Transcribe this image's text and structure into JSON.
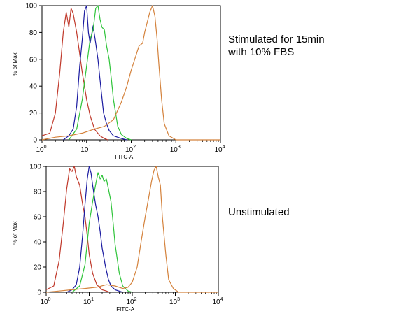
{
  "colors": {
    "red": "#c0392b",
    "blue": "#1a1aa0",
    "green": "#2fc43a",
    "orange": "#d4823c"
  },
  "chart_data": [
    {
      "type": "line",
      "annotation": "Stimulated for 15min\nwith 10% FBS",
      "xlabel": "FITC-A",
      "ylabel": "% of Max",
      "xscale": "log",
      "xlim": [
        1,
        10000
      ],
      "ylim": [
        0,
        100
      ],
      "xticks": [
        1,
        10,
        100,
        1000,
        10000
      ],
      "xtick_base": "10",
      "xtick_exponents": [
        "0",
        "1",
        "2",
        "3",
        "4"
      ],
      "yticks": [
        0,
        20,
        40,
        60,
        80,
        100
      ],
      "ytick_labels": [
        "0",
        "20",
        "40",
        "60",
        "80",
        "100"
      ],
      "grid": false,
      "series": [
        {
          "color": "red",
          "x": [
            1,
            1.5,
            2,
            2.5,
            3,
            3.5,
            4,
            4.5,
            5,
            6,
            7,
            8,
            9,
            10,
            12,
            15,
            20,
            25,
            30
          ],
          "y": [
            3,
            5,
            20,
            50,
            80,
            95,
            84,
            98,
            94,
            80,
            64,
            50,
            40,
            30,
            18,
            8,
            3,
            1,
            0
          ]
        },
        {
          "color": "blue",
          "x": [
            3,
            4,
            5,
            6,
            7,
            8,
            9,
            10,
            11,
            12,
            14,
            16,
            18,
            20,
            24,
            28,
            32,
            40,
            60,
            80
          ],
          "y": [
            0,
            3,
            8,
            25,
            55,
            75,
            96,
            100,
            80,
            72,
            85,
            72,
            60,
            45,
            20,
            12,
            7,
            3,
            1,
            0
          ]
        },
        {
          "color": "green",
          "x": [
            4,
            6,
            8,
            10,
            12,
            14,
            16,
            18,
            20,
            22,
            25,
            28,
            32,
            36,
            40,
            50,
            60,
            80,
            100
          ],
          "y": [
            0,
            8,
            30,
            55,
            75,
            82,
            98,
            100,
            90,
            84,
            82,
            70,
            60,
            45,
            30,
            10,
            4,
            1,
            0
          ]
        },
        {
          "color": "orange",
          "x": [
            1,
            2,
            4,
            8,
            15,
            25,
            40,
            60,
            80,
            100,
            120,
            150,
            180,
            200,
            230,
            260,
            300,
            340,
            380,
            420,
            480,
            550,
            700,
            1000,
            10000
          ],
          "y": [
            0,
            2,
            3,
            5,
            8,
            10,
            15,
            28,
            40,
            52,
            60,
            70,
            72,
            80,
            88,
            95,
            100,
            92,
            75,
            55,
            30,
            12,
            3,
            0,
            0
          ]
        }
      ]
    },
    {
      "type": "line",
      "annotation": "Unstimulated",
      "xlabel": "FITC-A",
      "ylabel": "% of Max",
      "xscale": "log",
      "xlim": [
        1,
        10000
      ],
      "ylim": [
        0,
        100
      ],
      "xticks": [
        1,
        10,
        100,
        1000,
        10000
      ],
      "xtick_base": "10",
      "xtick_exponents": [
        "0",
        "1",
        "2",
        "3",
        "4"
      ],
      "yticks": [
        0,
        20,
        40,
        60,
        80,
        100
      ],
      "ytick_labels": [
        "0",
        "20",
        "40",
        "60",
        "80",
        "100"
      ],
      "grid": false,
      "series": [
        {
          "color": "red",
          "x": [
            1,
            1.5,
            2,
            2.5,
            3,
            3.5,
            4,
            4.5,
            5,
            6,
            7,
            8,
            9,
            10,
            12,
            15,
            20,
            25,
            30
          ],
          "y": [
            2,
            5,
            25,
            55,
            82,
            98,
            96,
            100,
            92,
            85,
            70,
            60,
            45,
            30,
            15,
            6,
            2,
            1,
            0
          ]
        },
        {
          "color": "blue",
          "x": [
            3,
            4,
            5,
            6,
            7,
            8,
            9,
            10,
            11,
            12,
            14,
            16,
            18,
            20,
            24,
            28,
            32,
            40,
            60
          ],
          "y": [
            0,
            2,
            6,
            20,
            45,
            70,
            90,
            100,
            95,
            85,
            70,
            60,
            48,
            35,
            20,
            10,
            5,
            2,
            0
          ]
        },
        {
          "color": "green",
          "x": [
            4,
            6,
            8,
            10,
            12,
            14,
            16,
            18,
            20,
            22,
            25,
            28,
            32,
            36,
            40,
            50,
            60,
            80,
            100
          ],
          "y": [
            0,
            5,
            22,
            55,
            72,
            85,
            95,
            90,
            93,
            88,
            90,
            82,
            72,
            55,
            38,
            15,
            5,
            1,
            0
          ]
        },
        {
          "color": "orange",
          "x": [
            1,
            2,
            4,
            8,
            15,
            25,
            40,
            60,
            80,
            100,
            130,
            160,
            200,
            240,
            280,
            320,
            360,
            400,
            450,
            500,
            600,
            700,
            900,
            1200,
            10000
          ],
          "y": [
            0,
            1,
            2,
            3,
            4,
            6,
            5,
            3,
            4,
            8,
            20,
            40,
            60,
            75,
            88,
            97,
            100,
            92,
            85,
            60,
            30,
            10,
            3,
            0,
            0
          ]
        }
      ]
    }
  ]
}
